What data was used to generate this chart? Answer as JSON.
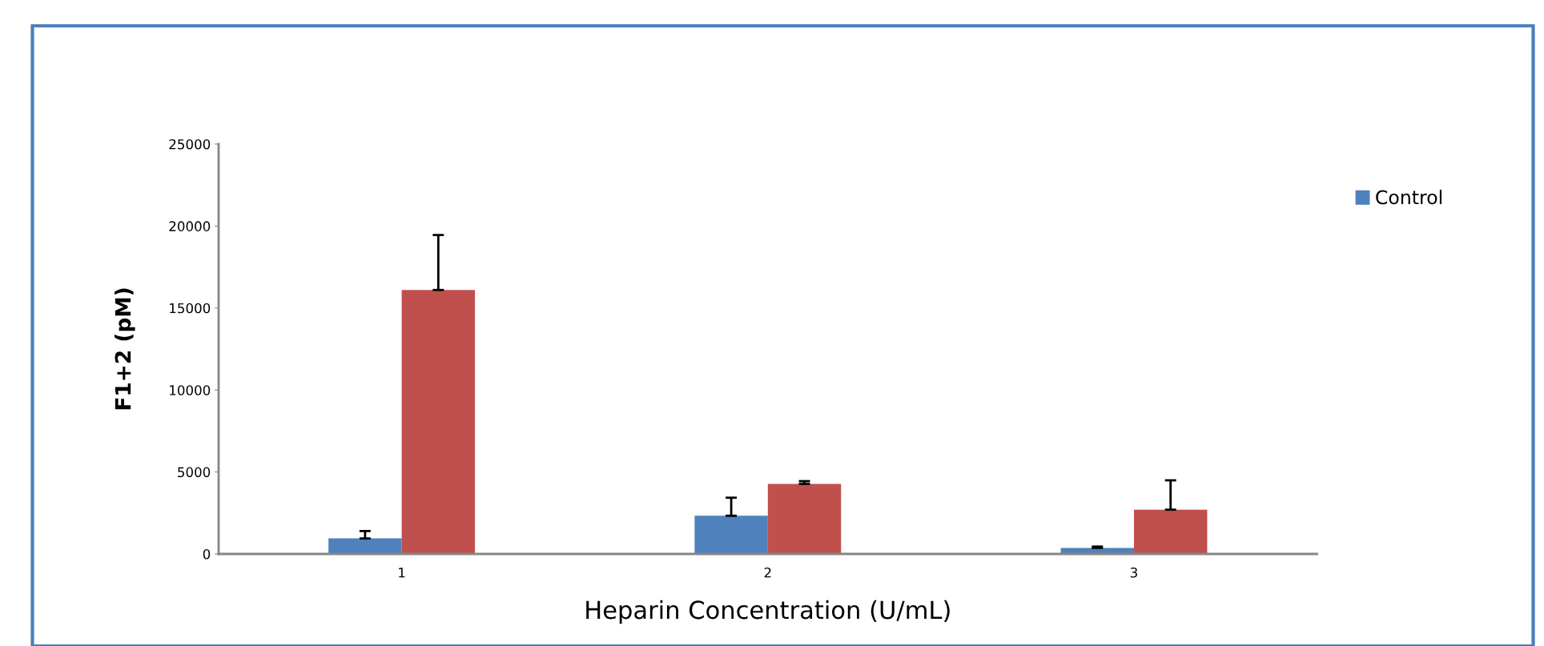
{
  "chart_data": {
    "type": "bar",
    "xlabel": "Heparin Concentration (U/mL)",
    "ylabel": "F1+2 (pM)",
    "categories": [
      "1",
      "2",
      "3"
    ],
    "series": [
      {
        "name": "Control",
        "color": "#4f81bd",
        "values": [
          950,
          2330,
          370
        ],
        "errors": [
          [
            950,
            1400
          ],
          [
            2330,
            3430
          ],
          [
            370,
            450
          ]
        ]
      },
      {
        "color": "#c0504d",
        "values": [
          16100,
          4270,
          2700
        ],
        "errors": [
          [
            16100,
            19450
          ],
          [
            4270,
            4440
          ],
          [
            2700,
            4490
          ]
        ]
      }
    ],
    "ylim": [
      0,
      25000
    ],
    "yticks": [
      0,
      5000,
      10000,
      15000,
      20000,
      25000
    ],
    "grid": false,
    "legend": "right"
  }
}
